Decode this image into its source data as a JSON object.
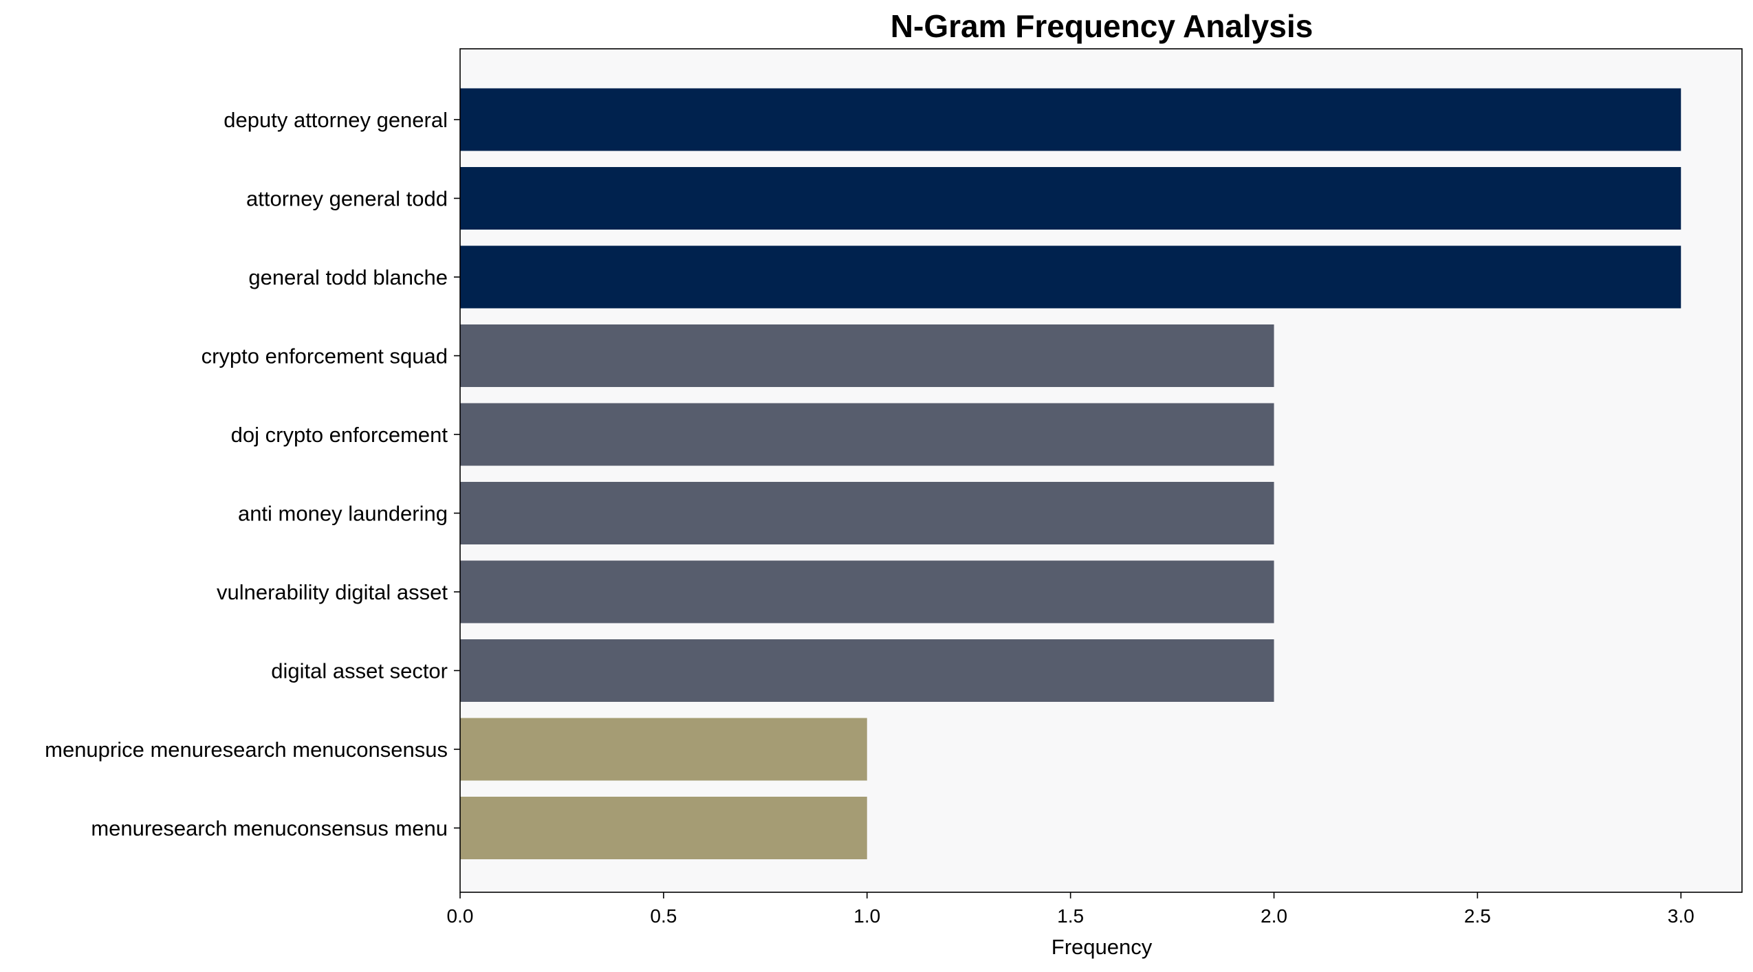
{
  "chart_data": {
    "type": "bar",
    "orientation": "horizontal",
    "title": "N-Gram Frequency Analysis",
    "xlabel": "Frequency",
    "ylabel": "",
    "categories": [
      "deputy attorney general",
      "attorney general todd",
      "general todd blanche",
      "crypto enforcement squad",
      "doj crypto enforcement",
      "anti money laundering",
      "vulnerability digital asset",
      "digital asset sector",
      "menuprice menuresearch menuconsensus",
      "menuresearch menuconsensus menu"
    ],
    "values": [
      3,
      3,
      3,
      2,
      2,
      2,
      2,
      2,
      1,
      1
    ],
    "bar_colors": [
      "#00224e",
      "#00224e",
      "#00224e",
      "#575d6d",
      "#575d6d",
      "#575d6d",
      "#575d6d",
      "#575d6d",
      "#a59c74",
      "#a59c74"
    ],
    "xlim": [
      0,
      3.15
    ],
    "xticks": [
      0.0,
      0.5,
      1.0,
      1.5,
      2.0,
      2.5,
      3.0
    ],
    "xtick_labels": [
      "0.0",
      "0.5",
      "1.0",
      "1.5",
      "2.0",
      "2.5",
      "3.0"
    ],
    "grid": false,
    "legend": "none",
    "plot_background": "#f8f8f9"
  }
}
